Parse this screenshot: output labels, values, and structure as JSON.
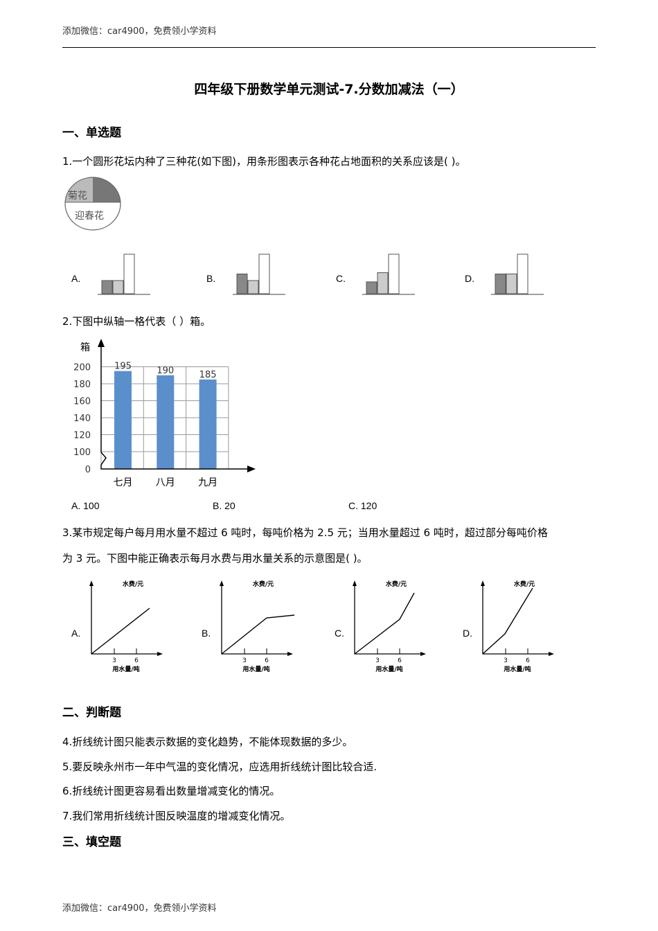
{
  "header": {
    "text": "添加微信：car4900，免费领小学资料"
  },
  "footer": {
    "text": "添加微信：car4900，免费领小学资料"
  },
  "title": "四年级下册数学单元测试-7.分数加减法（一）",
  "sections": [
    {
      "title": "一、单选题"
    },
    {
      "title": "二、判断题"
    },
    {
      "title": "三、填空题"
    }
  ],
  "q1": {
    "text": "1.一个圆形花坛内种了三种花(如下图)，用条形图表示各种花占地面积的关系应该是(    )。",
    "pie_labels": [
      "菊花",
      "迎春花"
    ],
    "options": [
      {
        "label": "A.",
        "bars": [
          1,
          1,
          3
        ]
      },
      {
        "label": "B.",
        "bars": [
          1.5,
          1,
          3
        ]
      },
      {
        "label": "C.",
        "bars": [
          0.9,
          1.6,
          3
        ]
      },
      {
        "label": "D.",
        "bars": [
          1.5,
          1.5,
          3
        ]
      }
    ]
  },
  "q2": {
    "text": "2.下图中纵轴一格代表（            ）箱。",
    "options": [
      "A. 100",
      "B. 20",
      "C. 120"
    ]
  },
  "chart_data": {
    "type": "bar",
    "ylabel": "箱",
    "categories": [
      "七月",
      "八月",
      "九月"
    ],
    "values": [
      195,
      190,
      185
    ],
    "data_labels": [
      "195",
      "190",
      "185"
    ],
    "yticks": [
      "0",
      "100",
      "120",
      "140",
      "160",
      "180",
      "200"
    ],
    "axis_break": true,
    "bar_color": "#5b8fcc",
    "grid": true
  },
  "q3": {
    "text1": "3.某市规定每户每月用水量不超过 6 吨时，每吨价格为 2.5 元；当用水量超过 6 吨时，超过部分每吨价格",
    "text2": "为 3 元。下图中能正确表示每月水费与用水量关系的示意图是(    )。",
    "ylabel": "水费/元",
    "xlabel": "用水量/吨",
    "ticks": [
      "3",
      "6"
    ],
    "options": [
      {
        "label": "A."
      },
      {
        "label": "B."
      },
      {
        "label": "C."
      },
      {
        "label": "D."
      }
    ]
  },
  "judge": [
    "4.折线统计图只能表示数据的变化趋势，不能体现数据的多少。",
    "5.要反映永州市一年中气温的变化情况，应选用折线统计图比较合适.",
    "6.折线统计图更容易看出数量增减变化的情况。",
    "7.我们常用折线统计图反映温度的增减变化情况。"
  ]
}
